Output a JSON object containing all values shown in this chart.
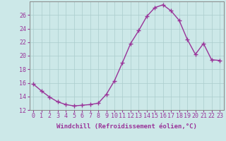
{
  "x": [
    0,
    1,
    2,
    3,
    4,
    5,
    6,
    7,
    8,
    9,
    10,
    11,
    12,
    13,
    14,
    15,
    16,
    17,
    18,
    19,
    20,
    21,
    22,
    23
  ],
  "y": [
    15.8,
    14.8,
    13.9,
    13.2,
    12.8,
    12.6,
    12.7,
    12.8,
    13.0,
    14.3,
    16.3,
    19.0,
    21.8,
    23.7,
    25.8,
    27.1,
    27.5,
    26.6,
    25.2,
    22.4,
    20.2,
    21.8,
    19.4,
    19.3
  ],
  "line_color": "#993399",
  "marker": "+",
  "marker_size": 4,
  "bg_color": "#cce8e8",
  "grid_color": "#aacccc",
  "xlabel": "Windchill (Refroidissement éolien,°C)",
  "ylim": [
    12,
    28
  ],
  "xlim": [
    -0.5,
    23.5
  ],
  "yticks": [
    12,
    14,
    16,
    18,
    20,
    22,
    24,
    26
  ],
  "xticks": [
    0,
    1,
    2,
    3,
    4,
    5,
    6,
    7,
    8,
    9,
    10,
    11,
    12,
    13,
    14,
    15,
    16,
    17,
    18,
    19,
    20,
    21,
    22,
    23
  ],
  "label_color": "#993399",
  "label_fontsize": 6.5,
  "tick_fontsize": 6.0,
  "linewidth": 1.0,
  "marker_linewidth": 1.0
}
